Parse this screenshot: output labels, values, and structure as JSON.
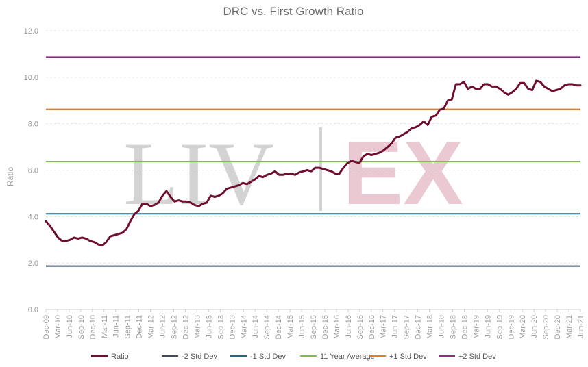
{
  "chart_data": {
    "type": "line",
    "title": "DRC vs. First Growth Ratio",
    "ylabel": "Ratio",
    "xlabel": "",
    "ylim": [
      0,
      12
    ],
    "yticks": [
      "0.0",
      "2.0",
      "4.0",
      "6.0",
      "8.0",
      "10.0",
      "12.0"
    ],
    "x_tick_labels": [
      "Dec-09",
      "Mar-10",
      "Jun-10",
      "Sep-10",
      "Dec-10",
      "Mar-11",
      "Jun-11",
      "Sep-11",
      "Dec-11",
      "Mar-12",
      "Jun-12",
      "Sep-12",
      "Dec-12",
      "Mar-13",
      "Jun-13",
      "Sep-13",
      "Dec-13",
      "Mar-14",
      "Jun-14",
      "Sep-14",
      "Dec-14",
      "Mar-15",
      "Jun-15",
      "Sep-15",
      "Dec-15",
      "Mar-16",
      "Jun-16",
      "Sep-16",
      "Dec-16",
      "Mar-17",
      "Jun-17",
      "Sep-17",
      "Dec-17",
      "Mar-18",
      "Jun-18",
      "Sep-18",
      "Dec-18",
      "Mar-19",
      "Jun-19",
      "Sep-19",
      "Dec-19",
      "Mar-20",
      "Jun-20",
      "Sep-20",
      "Dec-20",
      "Mar-21",
      "Jun-21"
    ],
    "grid": true,
    "legend_position": "bottom",
    "watermark_liv": "LIV",
    "watermark_ex": "EX",
    "series": [
      {
        "name": "Ratio",
        "color": "#6e0f32",
        "values": [
          3.8,
          3.6,
          3.35,
          3.1,
          2.95,
          2.95,
          3.0,
          3.1,
          3.05,
          3.1,
          3.05,
          2.95,
          2.9,
          2.8,
          2.75,
          2.9,
          3.15,
          3.2,
          3.25,
          3.3,
          3.45,
          3.8,
          4.1,
          4.25,
          4.55,
          4.55,
          4.45,
          4.5,
          4.6,
          4.9,
          5.1,
          4.85,
          4.65,
          4.7,
          4.65,
          4.65,
          4.6,
          4.5,
          4.45,
          4.55,
          4.6,
          4.9,
          4.85,
          4.9,
          5.0,
          5.2,
          5.25,
          5.3,
          5.35,
          5.45,
          5.4,
          5.5,
          5.6,
          5.75,
          5.7,
          5.8,
          5.85,
          5.95,
          5.8,
          5.8,
          5.85,
          5.85,
          5.8,
          5.9,
          5.95,
          6.0,
          5.95,
          6.1,
          6.1,
          6.05,
          6.0,
          5.95,
          5.85,
          5.85,
          6.1,
          6.3,
          6.4,
          6.35,
          6.3,
          6.6,
          6.7,
          6.65,
          6.7,
          6.75,
          6.85,
          7.0,
          7.15,
          7.4,
          7.45,
          7.55,
          7.65,
          7.8,
          7.85,
          7.95,
          8.1,
          7.95,
          8.3,
          8.35,
          8.6,
          8.65,
          9.0,
          9.05,
          9.7,
          9.7,
          9.8,
          9.5,
          9.6,
          9.5,
          9.5,
          9.7,
          9.7,
          9.6,
          9.6,
          9.5,
          9.35,
          9.25,
          9.35,
          9.5,
          9.75,
          9.75,
          9.5,
          9.45,
          9.85,
          9.8,
          9.6,
          9.5,
          9.4,
          9.45,
          9.5,
          9.65,
          9.7,
          9.7,
          9.65,
          9.65
        ]
      },
      {
        "name": "-2 Std Dev",
        "color": "#3b4a5c",
        "values": [
          1.87
        ]
      },
      {
        "name": "-1 Std Dev",
        "color": "#1f6a8a",
        "values": [
          4.12
        ]
      },
      {
        "name": "11 Year Average",
        "color": "#7ac143",
        "values": [
          6.37
        ]
      },
      {
        "name": "+1 Std Dev",
        "color": "#e07b22",
        "values": [
          8.62
        ]
      },
      {
        "name": "+2 Std Dev",
        "color": "#8a2c83",
        "values": [
          10.87
        ]
      }
    ]
  }
}
